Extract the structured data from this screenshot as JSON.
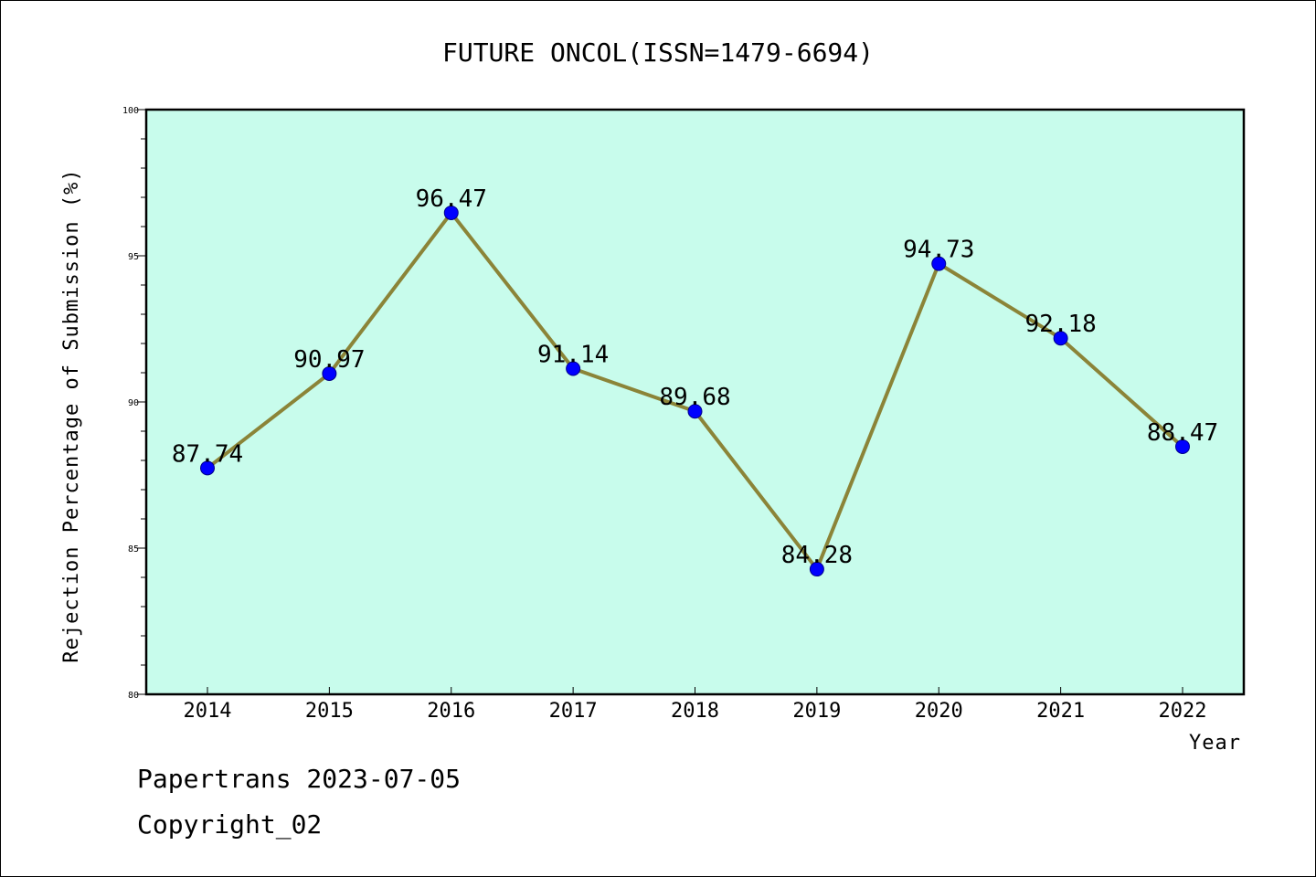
{
  "chart_data": {
    "type": "line",
    "title": "FUTURE ONCOL(ISSN=1479-6694)",
    "xlabel": "Year",
    "ylabel": "Rejection Percentage of Submission (%)",
    "categories": [
      "2014",
      "2015",
      "2016",
      "2017",
      "2018",
      "2019",
      "2020",
      "2021",
      "2022"
    ],
    "series": [
      {
        "values": [
          87.74,
          90.97,
          96.47,
          91.14,
          89.68,
          84.28,
          94.73,
          92.18,
          88.47
        ],
        "data_labels": [
          "87.74",
          "90.97",
          "96.47",
          "91.14",
          "89.68",
          "84.28",
          "94.73",
          "92.18",
          "88.47"
        ]
      }
    ],
    "ylim": [
      80,
      100
    ],
    "yticks": [
      80,
      85,
      90,
      95,
      100
    ],
    "yminor_step": 1,
    "grid": false,
    "legend": "none",
    "colors": {
      "plot_background": "#c8fcec",
      "line": "#8b8438",
      "marker": "#0000ff"
    }
  },
  "footer": {
    "line1": "Papertrans 2023-07-05",
    "line2": "Copyright_02"
  }
}
